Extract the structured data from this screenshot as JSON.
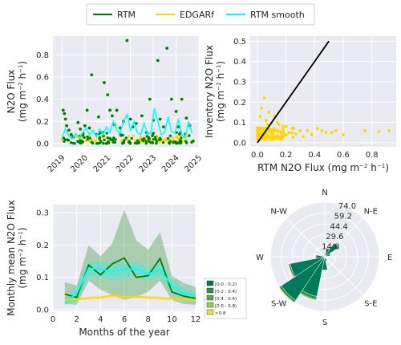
{
  "colors": {
    "rtm": "#008000",
    "edgar": "#ffd700",
    "smooth": "#00ffff",
    "background": "#eaeaf2",
    "grid": "#ffffff",
    "onetoone": "#000000"
  },
  "legend": {
    "items": [
      {
        "label": "RTM",
        "color": "#008000"
      },
      {
        "label": "EDGARf",
        "color": "#ffd700"
      },
      {
        "label": "RTM smooth",
        "color": "#00ffff"
      }
    ]
  },
  "chart_data": [
    {
      "type": "scatter",
      "title": "",
      "ylabel": [
        "N2O Flux",
        "(mg m",
        "−2",
        " h",
        "−1",
        ")"
      ],
      "xlim": [
        2018.6,
        2025.0
      ],
      "ylim": [
        -0.03,
        0.97
      ],
      "xticks": [
        2019,
        2020,
        2021,
        2022,
        2023,
        2024,
        2025
      ],
      "xtick_labels": [
        "2019",
        "2020",
        "2021",
        "2022",
        "2023",
        "2024",
        "2025"
      ],
      "yticks": [
        0.0,
        0.2,
        0.4,
        0.6,
        0.8
      ],
      "ytick_labels": [
        "0.0",
        "0.2",
        "0.4",
        "0.6",
        "0.8"
      ],
      "rtm_points": [
        [
          2019.05,
          0.3
        ],
        [
          2019.1,
          0.27
        ],
        [
          2019.15,
          0.22
        ],
        [
          2019.2,
          0.16
        ],
        [
          2019.3,
          0.12
        ],
        [
          2019.4,
          0.08
        ],
        [
          2019.5,
          0.06
        ],
        [
          2019.7,
          0.19
        ],
        [
          2019.8,
          0.13
        ],
        [
          2020.0,
          0.16
        ],
        [
          2020.1,
          0.3
        ],
        [
          2020.2,
          0.14
        ],
        [
          2020.3,
          0.62
        ],
        [
          2020.5,
          0.08
        ],
        [
          2020.6,
          0.24
        ],
        [
          2020.7,
          0.1
        ],
        [
          2020.85,
          0.55
        ],
        [
          2021.0,
          0.44
        ],
        [
          2021.1,
          0.3
        ],
        [
          2021.2,
          0.25
        ],
        [
          2021.3,
          0.17
        ],
        [
          2021.4,
          0.3
        ],
        [
          2021.55,
          0.14
        ],
        [
          2021.7,
          0.2
        ],
        [
          2021.85,
          0.93
        ],
        [
          2022.0,
          0.22
        ],
        [
          2022.1,
          0.15
        ],
        [
          2022.25,
          0.18
        ],
        [
          2022.5,
          0.25
        ],
        [
          2022.7,
          0.1
        ],
        [
          2022.85,
          0.4
        ],
        [
          2023.0,
          0.21
        ],
        [
          2023.2,
          0.75
        ],
        [
          2023.3,
          0.22
        ],
        [
          2023.45,
          0.15
        ],
        [
          2023.6,
          0.86
        ],
        [
          2023.8,
          0.4
        ],
        [
          2024.0,
          0.29
        ],
        [
          2024.1,
          0.15
        ],
        [
          2024.25,
          0.4
        ],
        [
          2024.45,
          0.23
        ],
        [
          2024.6,
          0.16
        ]
      ],
      "rtm_band": {
        "count": 130,
        "x_start": 2019.0,
        "x_end": 2024.8,
        "y_min": 0.0,
        "y_max": 0.12
      },
      "edgar_band": {
        "count": 80,
        "x_start": 2019.0,
        "x_end": 2024.8,
        "y_min": 0.01,
        "y_max": 0.07
      },
      "smooth_line": [
        [
          2019.0,
          0.06
        ],
        [
          2019.15,
          0.13
        ],
        [
          2019.3,
          0.07
        ],
        [
          2019.45,
          0.04
        ],
        [
          2019.6,
          0.09
        ],
        [
          2019.75,
          0.05
        ],
        [
          2019.9,
          0.1
        ],
        [
          2020.05,
          0.14
        ],
        [
          2020.2,
          0.08
        ],
        [
          2020.35,
          0.12
        ],
        [
          2020.5,
          0.06
        ],
        [
          2020.65,
          0.13
        ],
        [
          2020.8,
          0.08
        ],
        [
          2020.95,
          0.15
        ],
        [
          2021.1,
          0.1
        ],
        [
          2021.25,
          0.2
        ],
        [
          2021.4,
          0.12
        ],
        [
          2021.55,
          0.09
        ],
        [
          2021.7,
          0.2
        ],
        [
          2021.85,
          0.26
        ],
        [
          2022.0,
          0.12
        ],
        [
          2022.15,
          0.2
        ],
        [
          2022.3,
          0.1
        ],
        [
          2022.45,
          0.08
        ],
        [
          2022.6,
          0.18
        ],
        [
          2022.75,
          0.08
        ],
        [
          2022.9,
          0.1
        ],
        [
          2023.05,
          0.32
        ],
        [
          2023.2,
          0.2
        ],
        [
          2023.35,
          0.08
        ],
        [
          2023.5,
          0.1
        ],
        [
          2023.65,
          0.24
        ],
        [
          2023.8,
          0.11
        ],
        [
          2023.95,
          0.09
        ],
        [
          2024.1,
          0.22
        ],
        [
          2024.25,
          0.08
        ],
        [
          2024.4,
          0.05
        ],
        [
          2024.55,
          0.2
        ],
        [
          2024.7,
          0.09
        ]
      ]
    },
    {
      "type": "scatter",
      "title": "",
      "xlabel": [
        "RTM N2O Flux (mg m",
        "−2",
        " h",
        "−1",
        ")"
      ],
      "ylabel": [
        "Inventory N2O Flux",
        "(mg m",
        "−2",
        " h",
        "−1",
        ")"
      ],
      "xlim": [
        -0.05,
        0.97
      ],
      "ylim": [
        -0.02,
        0.525
      ],
      "xticks": [
        0.0,
        0.2,
        0.4,
        0.6,
        0.8
      ],
      "xtick_labels": [
        "0.0",
        "0.2",
        "0.4",
        "0.6",
        "0.8"
      ],
      "yticks": [
        0.0,
        0.1,
        0.2,
        0.3,
        0.4,
        0.5
      ],
      "ytick_labels": [
        "0.0",
        "0.1",
        "0.2",
        "0.3",
        "0.4",
        "0.5"
      ],
      "one_to_one": [
        [
          0.0,
          0.0
        ],
        [
          0.5,
          0.5
        ]
      ],
      "points": [
        [
          0.05,
          0.22
        ],
        [
          0.03,
          0.17
        ],
        [
          0.08,
          0.15
        ],
        [
          0.12,
          0.13
        ],
        [
          0.02,
          0.13
        ],
        [
          0.1,
          0.1
        ],
        [
          0.15,
          0.09
        ],
        [
          0.18,
          0.08
        ],
        [
          0.25,
          0.07
        ],
        [
          0.3,
          0.06
        ],
        [
          0.35,
          0.06
        ],
        [
          0.42,
          0.07
        ],
        [
          0.48,
          0.05
        ],
        [
          0.52,
          0.05
        ],
        [
          0.6,
          0.04
        ],
        [
          0.75,
          0.06
        ],
        [
          0.85,
          0.055
        ],
        [
          0.92,
          0.06
        ],
        [
          0.07,
          0.09
        ],
        [
          0.2,
          0.08
        ],
        [
          0.06,
          0.11
        ],
        [
          0.14,
          0.1
        ],
        [
          0.22,
          0.05
        ],
        [
          0.38,
          0.04
        ],
        [
          0.45,
          0.06
        ],
        [
          0.55,
          0.06
        ],
        [
          0.32,
          0.03
        ]
      ],
      "dense_cluster": {
        "count": 160,
        "x_min": 0.0,
        "x_max": 0.28,
        "y_min": 0.015,
        "y_max": 0.075
      }
    },
    {
      "type": "line",
      "title": "",
      "xlabel": [
        "Months of the year"
      ],
      "ylabel": [
        "Monthly mean N2O Flux",
        "(mg m",
        "−2",
        " h",
        "−1",
        ")"
      ],
      "xlim": [
        0,
        12
      ],
      "ylim": [
        -0.005,
        0.325
      ],
      "xticks": [
        0,
        2,
        4,
        6,
        8,
        10,
        12
      ],
      "xtick_labels": [
        "0",
        "2",
        "4",
        "6",
        "8",
        "10",
        "12"
      ],
      "yticks": [
        0.0,
        0.1,
        0.2,
        0.3
      ],
      "ytick_labels": [
        "0.0",
        "0.1",
        "0.2",
        "0.3"
      ],
      "x": [
        1,
        2,
        3,
        4,
        5,
        6,
        7,
        8,
        9,
        10,
        11,
        12
      ],
      "series": [
        {
          "key": "rtm",
          "color": "#008000",
          "values": [
            0.048,
            0.038,
            0.138,
            0.108,
            0.142,
            0.16,
            0.1,
            0.105,
            0.158,
            0.055,
            0.042,
            0.035
          ],
          "lower": [
            0.018,
            0.015,
            0.09,
            0.062,
            0.045,
            0.03,
            0.04,
            0.055,
            0.09,
            0.03,
            0.018,
            0.015
          ],
          "upper": [
            0.085,
            0.075,
            0.2,
            0.165,
            0.205,
            0.31,
            0.215,
            0.185,
            0.24,
            0.105,
            0.082,
            0.07
          ]
        },
        {
          "key": "smooth",
          "color": "#00ffff",
          "values": [
            0.022,
            0.05,
            0.128,
            0.125,
            0.118,
            0.125,
            0.125,
            0.11,
            0.125,
            0.075,
            0.05,
            0.042
          ],
          "lower": [
            0.012,
            0.03,
            0.1,
            0.1,
            0.09,
            0.095,
            0.105,
            0.09,
            0.1,
            0.06,
            0.038,
            0.03
          ],
          "upper": [
            0.035,
            0.075,
            0.15,
            0.148,
            0.145,
            0.15,
            0.15,
            0.13,
            0.15,
            0.092,
            0.065,
            0.055
          ]
        },
        {
          "key": "edgar",
          "color": "#ffd700",
          "values": [
            0.03,
            0.032,
            0.036,
            0.038,
            0.044,
            0.04,
            0.04,
            0.038,
            0.036,
            0.034,
            0.032,
            0.03
          ],
          "lower": [
            0.026,
            0.028,
            0.031,
            0.033,
            0.038,
            0.035,
            0.035,
            0.033,
            0.031,
            0.03,
            0.028,
            0.026
          ],
          "upper": [
            0.034,
            0.036,
            0.041,
            0.043,
            0.05,
            0.045,
            0.045,
            0.043,
            0.041,
            0.038,
            0.036,
            0.034
          ]
        }
      ]
    },
    {
      "type": "windrose",
      "title": "",
      "direction_labels": [
        "N",
        "N-E",
        "E",
        "S-E",
        "S",
        "S-W",
        "W",
        "N-W"
      ],
      "radial_ticks": [
        14.8,
        29.6,
        44.4,
        59.2,
        74.0
      ],
      "radial_tick_labels": [
        "14.8",
        "29.6",
        "44.4",
        "59.2",
        "74.0"
      ],
      "rmax": 74.0,
      "bins": [
        "[0.0 : 0.2)",
        "[0.2 : 0.4)",
        "[0.4 : 0.6)",
        "[0.6 : 0.8)",
        ">0.8"
      ],
      "bin_colors": [
        "#007a5a",
        "#2d8f42",
        "#5ea64a",
        "#9fc25e",
        "#e2e04c"
      ],
      "sector_width_deg": 22.5,
      "sectors": [
        {
          "dir": 202.5,
          "values": [
            55.0,
            4.0,
            1.5,
            0.5,
            0.3
          ]
        },
        {
          "dir": 225.0,
          "values": [
            71.0,
            3.0,
            1.0,
            0.5,
            0.3
          ]
        },
        {
          "dir": 247.5,
          "values": [
            48.0,
            2.0,
            1.0,
            0.4,
            0.2
          ]
        },
        {
          "dir": 180.0,
          "values": [
            18.0,
            1.0,
            0.5,
            0.2,
            0.1
          ]
        },
        {
          "dir": 270.0,
          "values": [
            12.0,
            0.8,
            0.3,
            0.1,
            0.1
          ]
        },
        {
          "dir": 45.0,
          "values": [
            22.0,
            1.0,
            0.4,
            0.2,
            0.1
          ]
        },
        {
          "dir": 22.5,
          "values": [
            12.0,
            0.6,
            0.3,
            0.1,
            0.1
          ]
        },
        {
          "dir": 67.5,
          "values": [
            8.0,
            0.4,
            0.2,
            0.1,
            0.0
          ]
        },
        {
          "dir": 157.5,
          "values": [
            6.0,
            0.3,
            0.2,
            0.1,
            0.0
          ]
        },
        {
          "dir": 292.5,
          "values": [
            4.0,
            0.2,
            0.1,
            0.0,
            0.0
          ]
        },
        {
          "dir": 0.0,
          "values": [
            4.0,
            0.2,
            0.1,
            0.0,
            0.0
          ]
        },
        {
          "dir": 90.0,
          "values": [
            3.0,
            0.2,
            0.1,
            0.0,
            0.0
          ]
        },
        {
          "dir": 135.0,
          "values": [
            3.0,
            0.1,
            0.1,
            0.0,
            0.0
          ]
        },
        {
          "dir": 112.5,
          "values": [
            2.0,
            0.1,
            0.0,
            0.0,
            0.0
          ]
        },
        {
          "dir": 315.0,
          "values": [
            2.0,
            0.1,
            0.0,
            0.0,
            0.0
          ]
        },
        {
          "dir": 337.5,
          "values": [
            2.0,
            0.1,
            0.0,
            0.0,
            0.0
          ]
        }
      ]
    }
  ]
}
